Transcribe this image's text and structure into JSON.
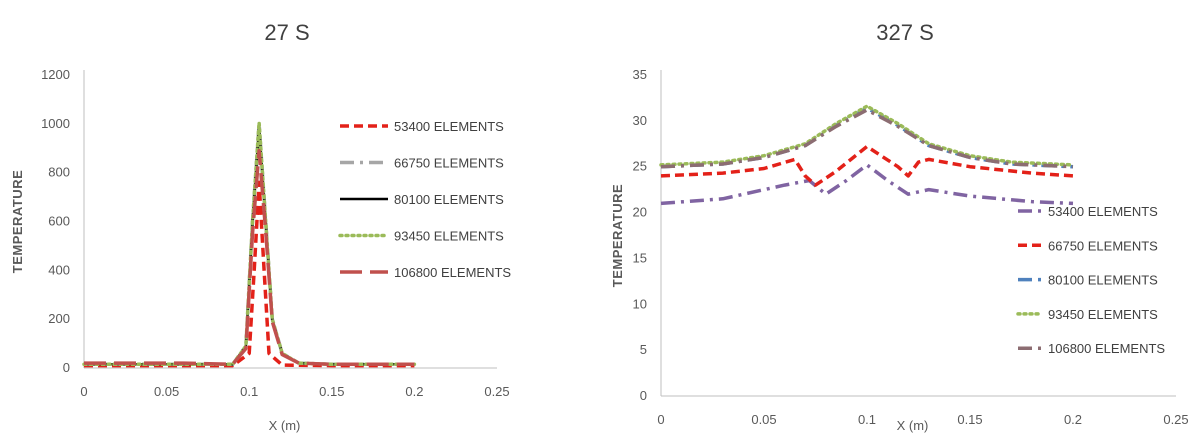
{
  "chart_data": [
    {
      "type": "line",
      "title": "27 S",
      "xlabel": "X (m)",
      "ylabel": "TEMPERATURE",
      "xlim": [
        0,
        0.25
      ],
      "ylim": [
        0,
        1200
      ],
      "xticks": [
        "0",
        "0.05",
        "0.1",
        "0.15",
        "0.2",
        "0.25"
      ],
      "yticks": [
        "0",
        "200",
        "400",
        "600",
        "800",
        "1000",
        "1200"
      ],
      "legend_position": "right",
      "series": [
        {
          "name": "53400 ELEMENTS",
          "color": "#e32119",
          "dash": "dash",
          "x": [
            0,
            0.05,
            0.09,
            0.1,
            0.103,
            0.106,
            0.109,
            0.112,
            0.12,
            0.15,
            0.2
          ],
          "y": [
            10,
            10,
            10,
            60,
            400,
            760,
            400,
            60,
            12,
            10,
            10
          ]
        },
        {
          "name": "66750 ELEMENTS",
          "color": "#a6a6a6",
          "dash": "dashdot",
          "x": [
            0,
            0.05,
            0.09,
            0.098,
            0.102,
            0.106,
            0.11,
            0.114,
            0.12,
            0.13,
            0.15,
            0.2
          ],
          "y": [
            15,
            15,
            15,
            90,
            600,
            1000,
            600,
            200,
            60,
            20,
            15,
            15
          ]
        },
        {
          "name": "80100 ELEMENTS",
          "color": "#000000",
          "dash": "solid",
          "x": [
            0,
            0.05,
            0.09,
            0.098,
            0.102,
            0.106,
            0.11,
            0.114,
            0.12,
            0.13,
            0.15,
            0.2
          ],
          "y": [
            15,
            15,
            15,
            90,
            600,
            990,
            600,
            200,
            60,
            20,
            15,
            15
          ]
        },
        {
          "name": "93450 ELEMENTS",
          "color": "#9bbb59",
          "dash": "dot",
          "x": [
            0,
            0.05,
            0.09,
            0.098,
            0.102,
            0.106,
            0.11,
            0.114,
            0.12,
            0.13,
            0.15,
            0.2
          ],
          "y": [
            15,
            15,
            15,
            90,
            600,
            1005,
            600,
            200,
            60,
            20,
            15,
            15
          ]
        },
        {
          "name": "106800 ELEMENTS",
          "color": "#c0504d",
          "dash": "longdash",
          "x": [
            0,
            0.06,
            0.09,
            0.098,
            0.102,
            0.106,
            0.11,
            0.114,
            0.12,
            0.13,
            0.15,
            0.2
          ],
          "y": [
            20,
            20,
            15,
            80,
            550,
            890,
            560,
            190,
            55,
            20,
            15,
            15
          ]
        }
      ]
    },
    {
      "type": "line",
      "title": "327 S",
      "xlabel": "X (m)",
      "ylabel": "TEMPERATURE",
      "xlim": [
        0,
        0.25
      ],
      "ylim": [
        0,
        35
      ],
      "xticks": [
        "0",
        "0.05",
        "0.1",
        "0.15",
        "0.2",
        "0.25"
      ],
      "yticks": [
        "0",
        "5",
        "10",
        "15",
        "20",
        "25",
        "30",
        "35"
      ],
      "legend_position": "right",
      "series": [
        {
          "name": "53400 ELEMENTS",
          "color": "#8064a2",
          "dash": "dashdot",
          "x": [
            0,
            0.03,
            0.06,
            0.072,
            0.08,
            0.09,
            0.1,
            0.11,
            0.12,
            0.13,
            0.15,
            0.18,
            0.2
          ],
          "y": [
            21,
            21.5,
            23,
            23.5,
            22,
            23.5,
            25.2,
            23.5,
            22,
            22.5,
            21.8,
            21.2,
            21
          ]
        },
        {
          "name": "66750 ELEMENTS",
          "color": "#e32119",
          "dash": "dash",
          "x": [
            0,
            0.03,
            0.05,
            0.065,
            0.07,
            0.075,
            0.085,
            0.1,
            0.115,
            0.12,
            0.125,
            0.13,
            0.15,
            0.18,
            0.2
          ],
          "y": [
            24,
            24.3,
            24.8,
            25.8,
            24,
            23,
            24.5,
            27.2,
            25,
            24,
            25.5,
            25.8,
            25,
            24.3,
            24
          ]
        },
        {
          "name": "80100 ELEMENTS",
          "color": "#4f81bd",
          "dash": "dashdot",
          "x": [
            0,
            0.03,
            0.05,
            0.07,
            0.085,
            0.1,
            0.115,
            0.13,
            0.15,
            0.17,
            0.2
          ],
          "y": [
            25,
            25.3,
            26,
            27.3,
            29.5,
            31.4,
            29.5,
            27.3,
            26,
            25.3,
            25
          ]
        },
        {
          "name": "93450 ELEMENTS",
          "color": "#9bbb59",
          "dash": "dot",
          "x": [
            0,
            0.03,
            0.05,
            0.07,
            0.085,
            0.1,
            0.115,
            0.13,
            0.15,
            0.17,
            0.2
          ],
          "y": [
            25.2,
            25.5,
            26.2,
            27.5,
            29.7,
            31.6,
            29.7,
            27.5,
            26.2,
            25.5,
            25.2
          ]
        },
        {
          "name": "106800 ELEMENTS",
          "color": "#8c6d72",
          "dash": "dashdot",
          "x": [
            0,
            0.03,
            0.05,
            0.07,
            0.085,
            0.1,
            0.115,
            0.13,
            0.15,
            0.17,
            0.2
          ],
          "y": [
            25,
            25.3,
            26,
            27.3,
            29.4,
            31.2,
            29.4,
            27.3,
            26,
            25.3,
            25
          ]
        }
      ]
    }
  ]
}
